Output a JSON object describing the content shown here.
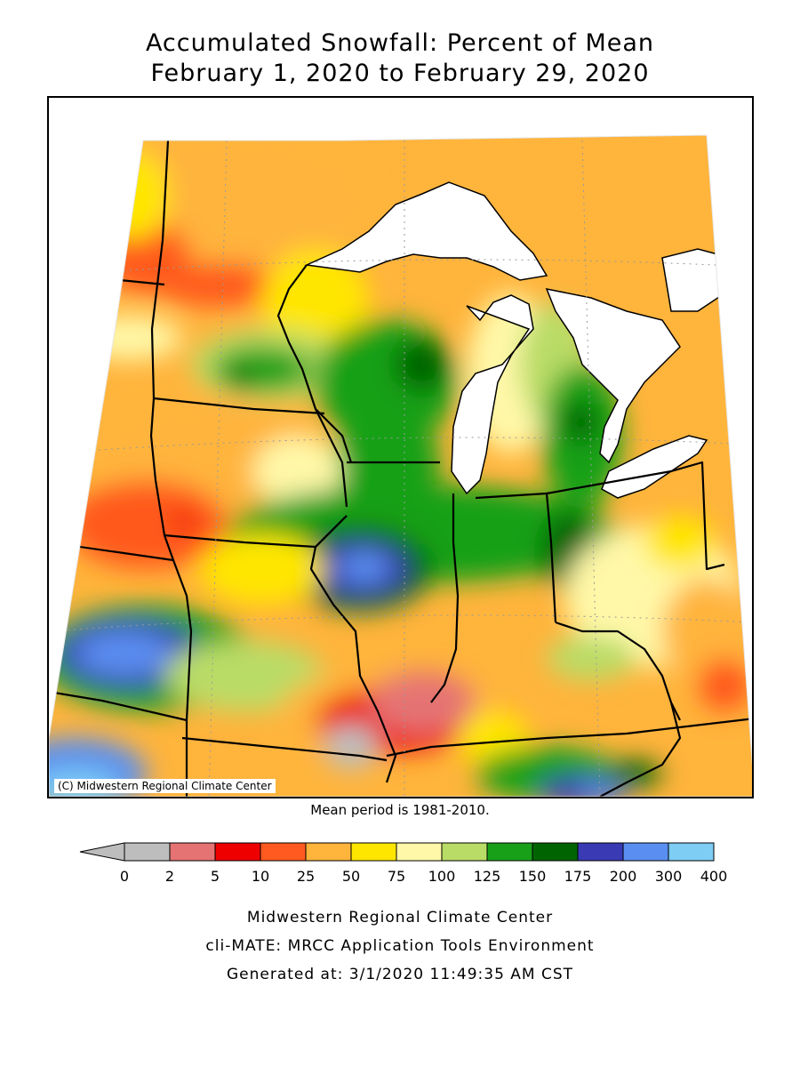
{
  "title": {
    "line1": "Accumulated Snowfall: Percent of Mean",
    "line2": "February 1, 2020 to February 29, 2020"
  },
  "map": {
    "copyright": "(C) Midwestern Regional Climate Center",
    "mean_period": "Mean period is 1981-2010."
  },
  "legend": {
    "labels": [
      "0",
      "2",
      "5",
      "10",
      "25",
      "50",
      "75",
      "100",
      "125",
      "150",
      "175",
      "200",
      "300",
      "400"
    ],
    "colors": [
      "#bdbdbd",
      "#e57373",
      "#ee0000",
      "#ff5a1f",
      "#ffb43c",
      "#ffe600",
      "#fff8a8",
      "#b9dc66",
      "#19a019",
      "#006400",
      "#3a3ab4",
      "#5a8ef0",
      "#7dcdf5"
    ]
  },
  "footer": {
    "line1": "Midwestern Regional Climate Center",
    "line2": "cli-MATE: MRCC Application Tools Environment",
    "line3": "Generated at: 3/1/2020 11:49:35 AM CST"
  }
}
